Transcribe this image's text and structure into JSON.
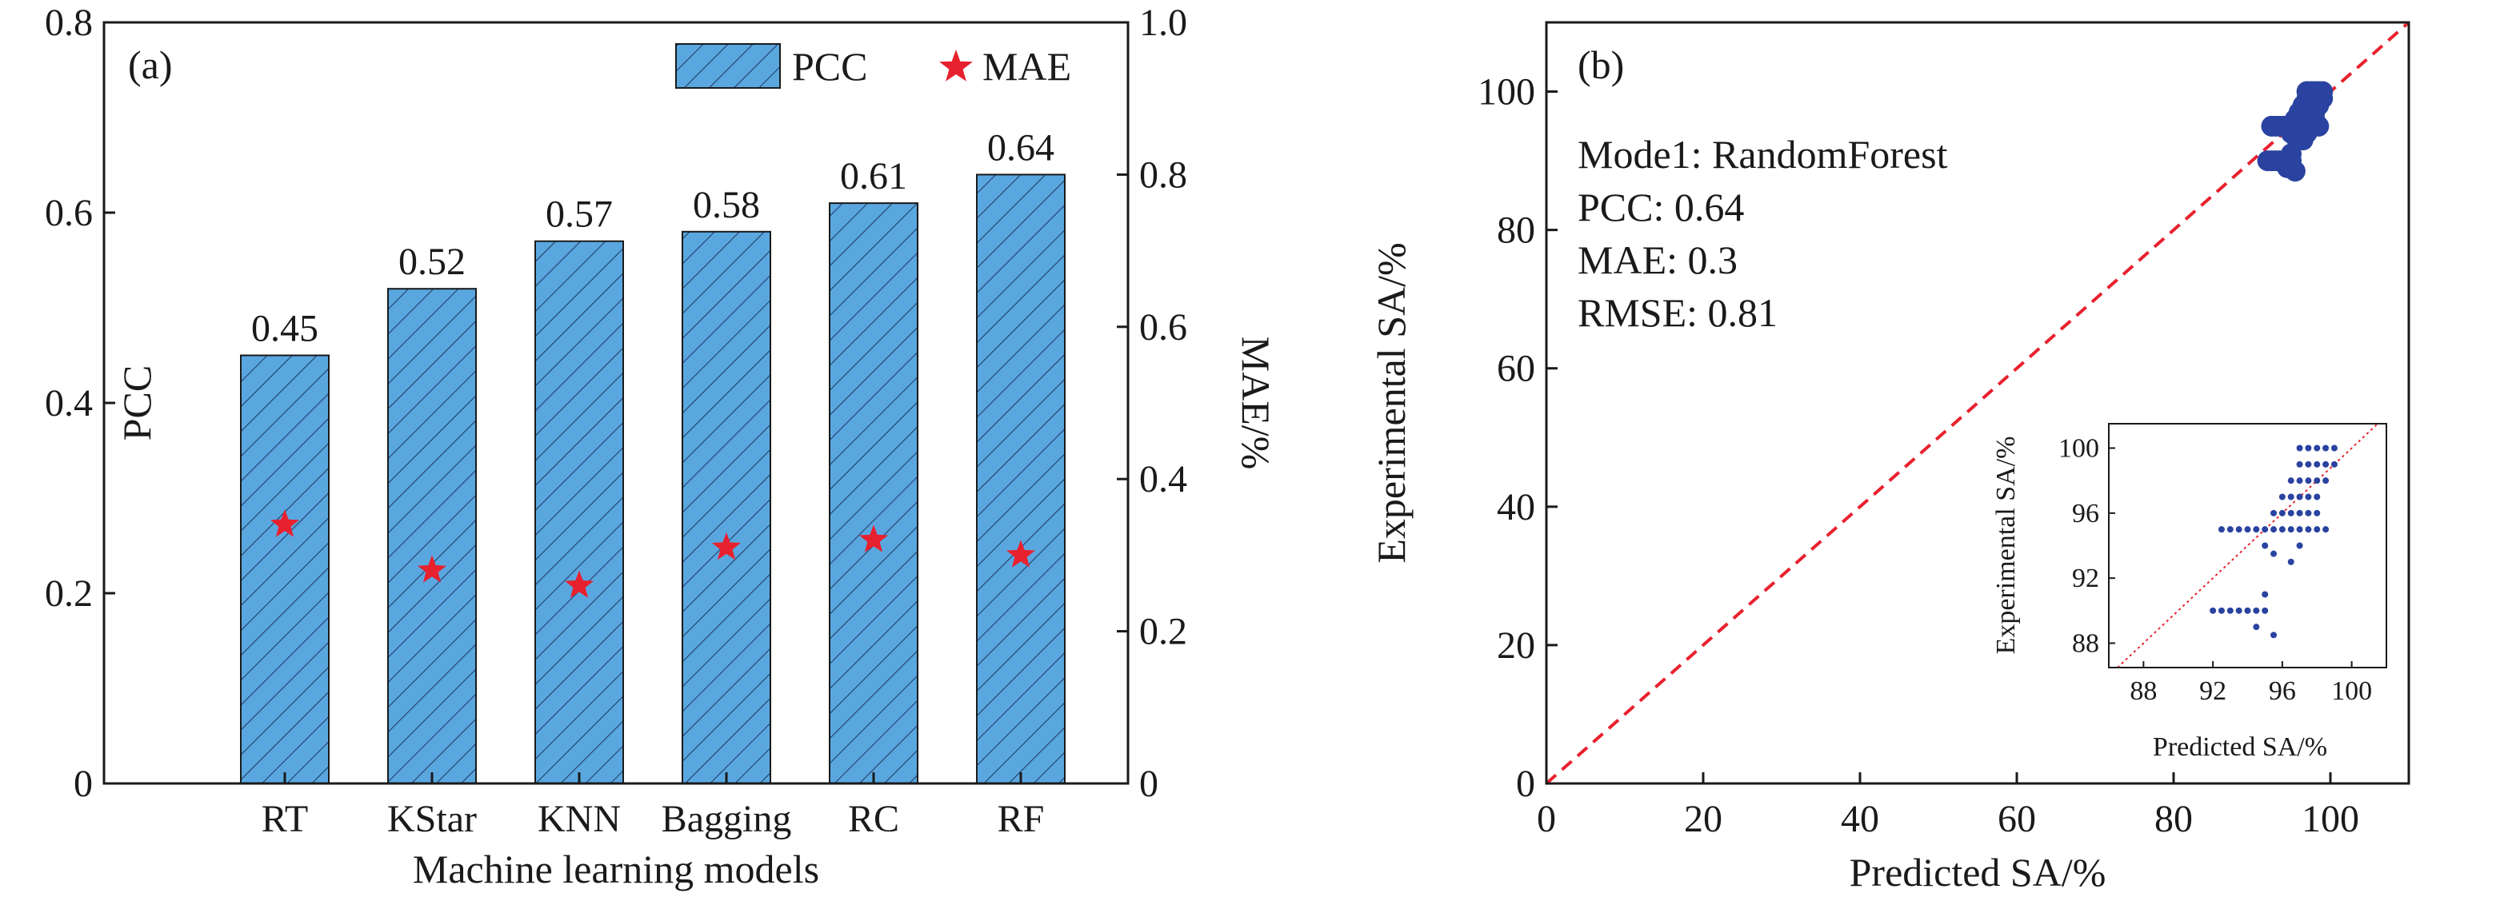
{
  "chart_data": [
    {
      "type": "bar",
      "panel_label": "(a)",
      "title": "",
      "categories": [
        "RT",
        "KStar",
        "KNN",
        "Bagging",
        "RC",
        "RF"
      ],
      "series": [
        {
          "name": "PCC",
          "axis": "left",
          "kind": "bar",
          "values": [
            0.45,
            0.52,
            0.57,
            0.58,
            0.61,
            0.64
          ],
          "labels": [
            "0.45",
            "0.52",
            "0.57",
            "0.58",
            "0.61",
            "0.64"
          ],
          "color": "#5aa7e0",
          "hatch": true
        },
        {
          "name": "MAE",
          "axis": "right",
          "kind": "marker",
          "marker": "star",
          "values": [
            0.34,
            0.28,
            0.26,
            0.31,
            0.32,
            0.3
          ],
          "color": "#e8212e"
        }
      ],
      "xlabel": "Machine learning models",
      "ylabel": "PCC",
      "y2label": "MAE/%",
      "ylim": [
        0,
        0.8
      ],
      "y2lim": [
        0,
        1.0
      ],
      "yticks": [
        "0",
        "0.2",
        "0.4",
        "0.6",
        "0.8"
      ],
      "y2ticks": [
        "0",
        "0.2",
        "0.4",
        "0.6",
        "0.8",
        "1.0"
      ],
      "legend": "top-right",
      "grid": false
    },
    {
      "type": "scatter",
      "panel_label": "(b)",
      "title": "",
      "xlabel": "Predicted SA/%",
      "ylabel": "Experimental SA/%",
      "xlim": [
        0,
        110
      ],
      "ylim": [
        0,
        110
      ],
      "xticks": [
        "0",
        "20",
        "40",
        "60",
        "80",
        "100"
      ],
      "yticks": [
        "0",
        "20",
        "40",
        "60",
        "80",
        "100"
      ],
      "diagonal": "y = x (red dashed)",
      "annotations": [
        "Mode1: RandomForest",
        "PCC: 0.64",
        "MAE: 0.3",
        "RMSE: 0.81"
      ],
      "color": "#2a43a0",
      "points": [
        [
          92,
          90
        ],
        [
          92.5,
          90
        ],
        [
          93,
          90
        ],
        [
          93.5,
          90
        ],
        [
          94,
          90
        ],
        [
          94.5,
          90
        ],
        [
          95,
          90
        ],
        [
          95.5,
          88.5
        ],
        [
          94.5,
          89
        ],
        [
          95,
          91
        ],
        [
          92.5,
          95
        ],
        [
          93,
          95
        ],
        [
          93.5,
          95
        ],
        [
          94,
          95
        ],
        [
          94.5,
          95
        ],
        [
          95,
          95
        ],
        [
          95.5,
          95
        ],
        [
          96,
          95
        ],
        [
          96.5,
          95
        ],
        [
          97,
          95
        ],
        [
          97.5,
          95
        ],
        [
          98,
          95
        ],
        [
          98.5,
          95
        ],
        [
          95,
          94
        ],
        [
          95.5,
          93.5
        ],
        [
          95.5,
          96
        ],
        [
          96,
          96
        ],
        [
          96.5,
          96
        ],
        [
          97,
          96
        ],
        [
          97.5,
          96
        ],
        [
          96,
          97
        ],
        [
          96.5,
          97
        ],
        [
          97,
          97
        ],
        [
          97.5,
          97
        ],
        [
          98,
          97
        ],
        [
          96.5,
          98
        ],
        [
          97,
          98
        ],
        [
          97.5,
          98
        ],
        [
          98,
          98
        ],
        [
          98.5,
          98
        ],
        [
          97,
          99
        ],
        [
          97.5,
          99
        ],
        [
          98,
          99
        ],
        [
          98.5,
          99
        ],
        [
          99,
          99
        ],
        [
          97,
          100
        ],
        [
          97.5,
          100
        ],
        [
          98,
          100
        ],
        [
          98.5,
          100
        ],
        [
          99,
          100
        ],
        [
          96.5,
          93
        ],
        [
          97,
          94
        ],
        [
          98,
          96
        ]
      ],
      "inset": {
        "xlabel": "Predicted SA/%",
        "ylabel": "Experimental SA/%",
        "xlim": [
          86,
          102
        ],
        "ylim": [
          86.5,
          101.5
        ],
        "xticks": [
          "88",
          "92",
          "96",
          "100"
        ],
        "yticks": [
          "88",
          "92",
          "96",
          "100"
        ],
        "diagonal": "y = x (red dotted)"
      }
    }
  ]
}
